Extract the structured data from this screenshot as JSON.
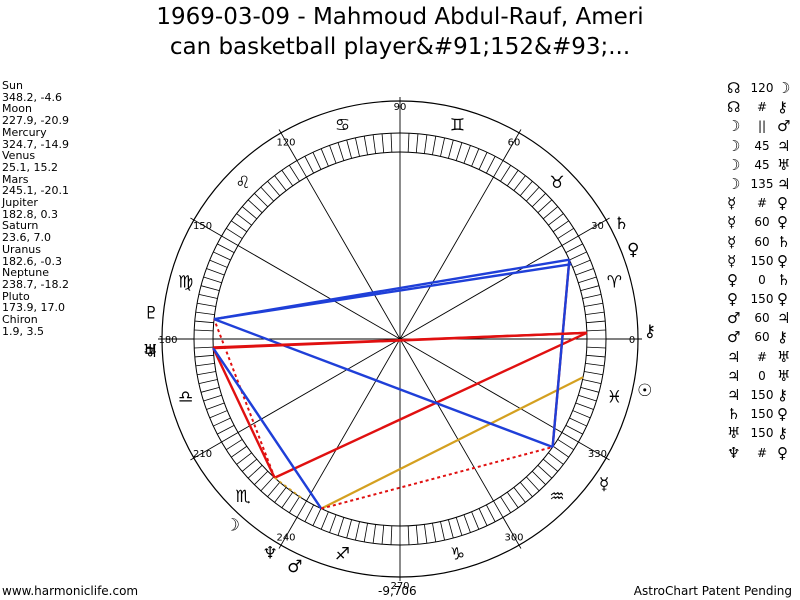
{
  "title_line1": "1969-03-09 - Mahmoud Abdul-Rauf, Ameri",
  "title_line2": "can basketball player&#91;152&#93;...",
  "planets": [
    {
      "name": "Sun",
      "coords": "348.2, -4.6"
    },
    {
      "name": "Moon",
      "coords": "227.9, -20.9"
    },
    {
      "name": "Mercury",
      "coords": "324.7, -14.9"
    },
    {
      "name": "Venus",
      "coords": "25.1, 15.2"
    },
    {
      "name": "Mars",
      "coords": "245.1, -20.1"
    },
    {
      "name": "Jupiter",
      "coords": "182.8, 0.3"
    },
    {
      "name": "Saturn",
      "coords": "23.6, 7.0"
    },
    {
      "name": "Uranus",
      "coords": "182.6, -0.3"
    },
    {
      "name": "Neptune",
      "coords": "238.7, -18.2"
    },
    {
      "name": "Pluto",
      "coords": "173.9, 17.0"
    },
    {
      "name": "Chiron",
      "coords": "1.9, 3.5"
    }
  ],
  "aspects": [
    {
      "a": "☊",
      "angle": "120",
      "b": "☽"
    },
    {
      "a": "☊",
      "angle": "#",
      "b": "⚷"
    },
    {
      "a": "☽",
      "angle": "||",
      "b": "♂"
    },
    {
      "a": "☽",
      "angle": "45",
      "b": "♃"
    },
    {
      "a": "☽",
      "angle": "45",
      "b": "♅"
    },
    {
      "a": "☽",
      "angle": "135",
      "b": "♃"
    },
    {
      "a": "☿",
      "angle": "#",
      "b": "♀"
    },
    {
      "a": "☿",
      "angle": "60",
      "b": "♀"
    },
    {
      "a": "☿",
      "angle": "60",
      "b": "♄"
    },
    {
      "a": "☿",
      "angle": "150",
      "b": "♀"
    },
    {
      "a": "♀",
      "angle": "0",
      "b": "♄"
    },
    {
      "a": "♀",
      "angle": "150",
      "b": "♀"
    },
    {
      "a": "♂",
      "angle": "60",
      "b": "♃"
    },
    {
      "a": "♂",
      "angle": "60",
      "b": "⚷"
    },
    {
      "a": "♃",
      "angle": "#",
      "b": "♅"
    },
    {
      "a": "♃",
      "angle": "0",
      "b": "♅"
    },
    {
      "a": "♃",
      "angle": "150",
      "b": "⚷"
    },
    {
      "a": "♄",
      "angle": "150",
      "b": "♀"
    },
    {
      "a": "♅",
      "angle": "150",
      "b": "⚷"
    },
    {
      "a": "♆",
      "angle": "#",
      "b": "♀"
    }
  ],
  "degree_labels": [
    "90",
    "60",
    "30",
    "0",
    "330",
    "300",
    "270",
    "240",
    "210",
    "180",
    "150",
    "120"
  ],
  "zodiac_signs": [
    "♈",
    "♉",
    "♊",
    "♋",
    "♌",
    "♍",
    "♎",
    "♏",
    "♐",
    "♑",
    "♒",
    "♓"
  ],
  "wheel_glyphs": {
    "sun": "☉",
    "moon": "☽",
    "mercury": "☿",
    "venus": "♀",
    "mars": "♂",
    "jupiter": "♃",
    "saturn": "♄",
    "uranus": "♅",
    "neptune": "♆",
    "pluto": "♇",
    "chiron": "⚷",
    "node": "☊"
  },
  "colors": {
    "blue": "#1f3fd8",
    "red": "#e01010",
    "gold": "#d4a020"
  },
  "footer": {
    "left": "www.harmoniclife.com",
    "center": "-9,706",
    "right": "AstroChart Patent Pending"
  }
}
